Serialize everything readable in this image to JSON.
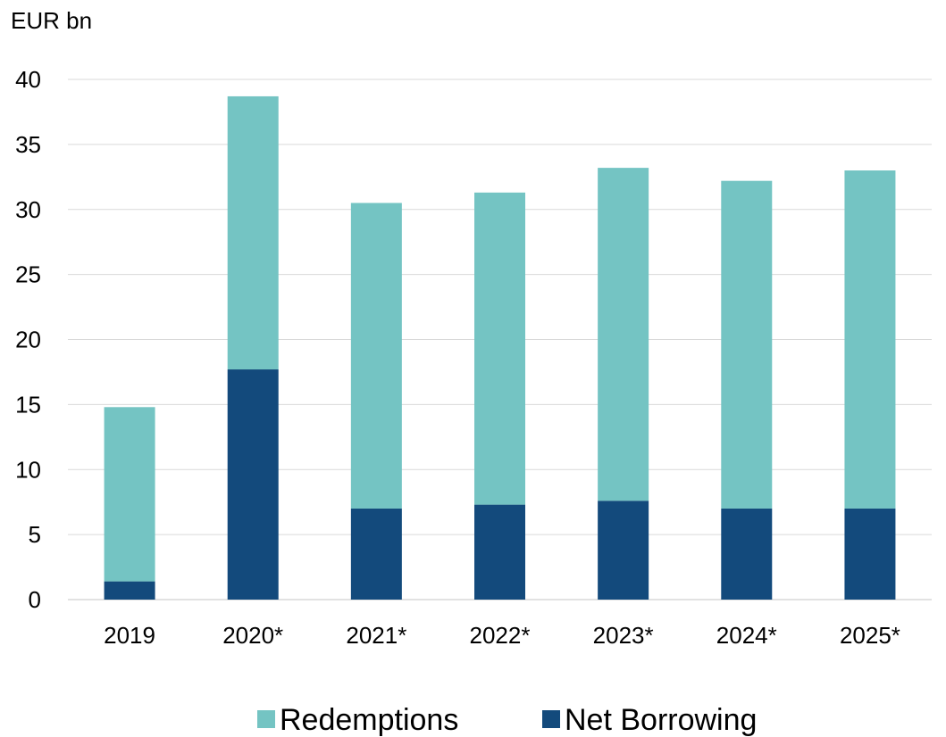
{
  "chart_data": {
    "type": "bar",
    "stacked": true,
    "ylabel": "EUR bn",
    "ylim": [
      0,
      40
    ],
    "yticks": [
      "0",
      "5",
      "10",
      "15",
      "20",
      "25",
      "30",
      "35",
      "40"
    ],
    "categories": [
      "2019",
      "2020*",
      "2021*",
      "2022*",
      "2023*",
      "2024*",
      "2025*"
    ],
    "series": [
      {
        "name": "Net Borrowing",
        "color": "#134a7c",
        "values": [
          1.4,
          17.7,
          7.0,
          7.3,
          7.6,
          7.0,
          7.0
        ]
      },
      {
        "name": "Redemptions",
        "color": "#74c4c3",
        "values": [
          13.4,
          21.0,
          23.5,
          24.0,
          25.6,
          25.2,
          26.0
        ]
      }
    ],
    "legend_order": [
      "Redemptions",
      "Net Borrowing"
    ],
    "grid": true,
    "gridline_color": "#d9d9d9",
    "legend_position": "bottom"
  }
}
